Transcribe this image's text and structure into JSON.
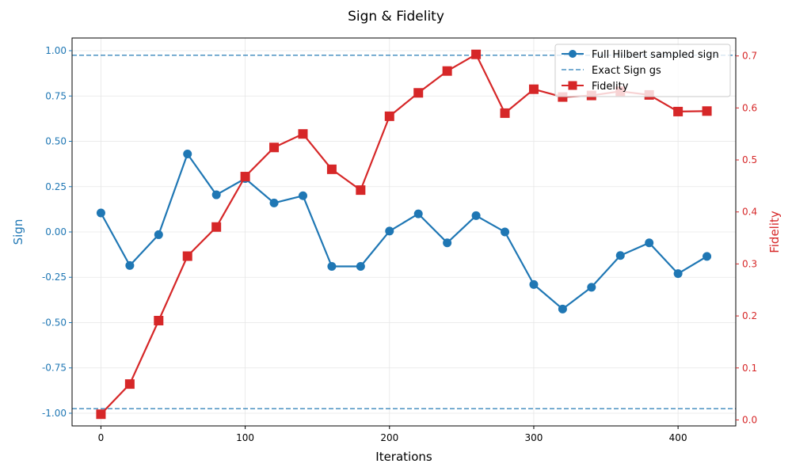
{
  "chart_data": {
    "type": "line",
    "title": "Sign & Fidelity",
    "xlabel": "Iterations",
    "ylabel_left": "Sign",
    "ylabel_right": "Fidelity",
    "xlim": [
      -20,
      440
    ],
    "ylim_left": [
      -1.07,
      1.07
    ],
    "ylim_right": [
      -0.0115,
      0.7345
    ],
    "x_ticks": [
      0,
      100,
      200,
      300,
      400
    ],
    "y_left_ticks": [
      -1.0,
      -0.75,
      -0.5,
      -0.25,
      0.0,
      0.25,
      0.5,
      0.75,
      1.0
    ],
    "y_right_ticks": [
      0.0,
      0.1,
      0.2,
      0.3,
      0.4,
      0.5,
      0.6,
      0.7
    ],
    "grid": true,
    "legend_position": "top-right",
    "x": [
      0,
      20,
      40,
      60,
      80,
      100,
      120,
      140,
      160,
      180,
      200,
      220,
      240,
      260,
      280,
      300,
      320,
      340,
      360,
      380,
      400,
      420
    ],
    "series": [
      {
        "name": "Full Hilbert sampled sign",
        "axis": "left",
        "color": "#1f77b4",
        "marker": "circle",
        "values": [
          0.105,
          -0.185,
          -0.015,
          0.43,
          0.205,
          0.295,
          0.16,
          0.2,
          -0.19,
          -0.19,
          0.005,
          0.1,
          -0.06,
          0.09,
          0.0,
          -0.29,
          -0.425,
          -0.305,
          -0.13,
          -0.06,
          -0.23,
          -0.135
        ]
      },
      {
        "name": "Fidelity",
        "axis": "right",
        "color": "#d62728",
        "marker": "square",
        "values": [
          0.011,
          0.069,
          0.191,
          0.315,
          0.371,
          0.468,
          0.524,
          0.55,
          0.482,
          0.442,
          0.584,
          0.629,
          0.671,
          0.703,
          0.59,
          0.636,
          0.621,
          0.624,
          0.632,
          0.625,
          0.593,
          0.594
        ]
      }
    ],
    "reference_lines": [
      {
        "name": "Exact Sign gs",
        "axis": "left",
        "color": "#1f77b4",
        "style": "dashed",
        "values": [
          0.975,
          -0.975
        ]
      }
    ]
  }
}
